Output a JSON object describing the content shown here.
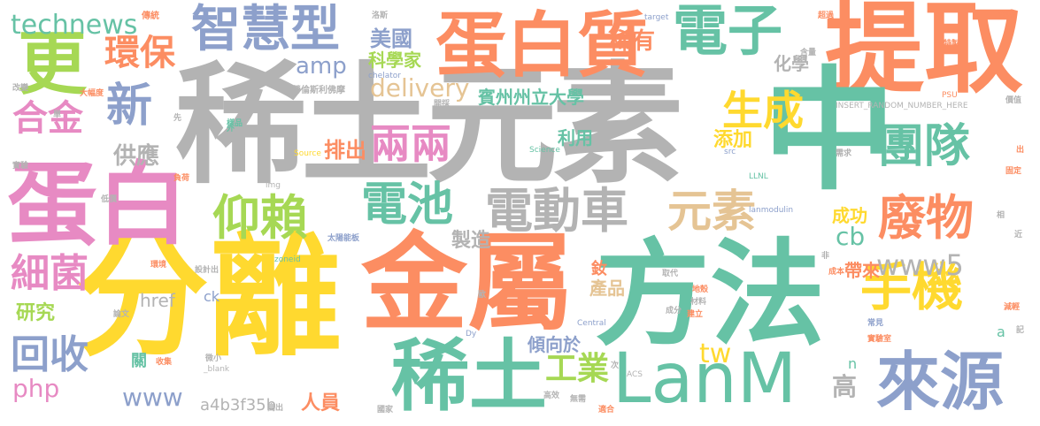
{
  "palette": {
    "green": "#66c2a5",
    "orange": "#fc8d62",
    "blue": "#8da0cb",
    "pink": "#e78ac3",
    "lime": "#a6d854",
    "yellow": "#ffd92f",
    "tan": "#e5c494",
    "gray": "#b3b3b3"
  },
  "words": {
    "xitu_yuansu": "稀土元素",
    "tiqu": "提取",
    "fenli": "分離",
    "jinshu": "金屬",
    "fangfa": "方法",
    "zhong": "中",
    "danbai": "蛋白",
    "danbaizhi": "蛋白質",
    "lanm": "LanM",
    "xitu": "稀土",
    "dianzi": "電子",
    "zhihuixing": "智慧型",
    "geng": "更",
    "laiyuan": "來源",
    "xin": "新",
    "tuandui": "團隊",
    "feiwu": "廢物",
    "yanglai": "仰賴",
    "dianchi": "電池",
    "diandongche": "電動車",
    "yuansu": "元素",
    "shouji": "手機",
    "huanbao": "環保",
    "hejin": "合金",
    "technews": "technews",
    "shengcheng": "生成",
    "liangliang": "兩兩",
    "delivery": "delivery",
    "xijun": "細菌",
    "huishou": "回收",
    "amp": "amp",
    "www5": "www5",
    "gongye": "工業",
    "binzhou": "賓州州立大學",
    "xiyou": "稀有",
    "meiguo": "美國",
    "kexuejia": "科學家",
    "huaxue": "化學",
    "gongying": "供應",
    "paichu": "排出",
    "tianjia": "添加",
    "liyong": "利用",
    "chenggong": "成功",
    "cb": "cb",
    "dailai": "帶來",
    "www": "www",
    "php": "php",
    "yanjiu": "研究",
    "zhizao": "製造",
    "chanpin": "產品",
    "tw": "tw",
    "qingxiangyu": "傾向於",
    "a4b": "a4b3f35b",
    "renyuan": "人員",
    "gao": "高",
    "href": "href",
    "ck": "ck",
    "n": "n",
    "guan": "關",
    "you": "釹",
    "a": "a",
    "chuantong": "傳統",
    "laorun": "勞倫斯利佛摩",
    "zhouzhi": "洛斯",
    "target": "target",
    "chaoguo": "超過",
    "bushou": "步驟",
    "gailiang": "改變",
    "dada": "大幅度",
    "chelator": "chelator",
    "insert": "INSERT_RANDOM_NUMBER_HERE",
    "psu": "PSU",
    "science": "Science",
    "source": "Source",
    "src": "src",
    "img": "img",
    "llnl": "LLNL",
    "lanmodulin": "lanmodulin",
    "taiyang": "太陽能板",
    "zoneid": "zoneid",
    "blank": "_blank",
    "central": "Central",
    "acs": "ACS",
    "dy": "Dy",
    "ziyuan": "資源",
    "jiage": "價值",
    "chengben": "成本",
    "xulie": "序列",
    "shuiping": "水平",
    "gonglv": "效率",
    "nengli": "能力",
    "bixu": "必須",
    "guojia": "國家",
    "jianli": "建立",
    "chengfen": "成分",
    "cailiao": "材料",
    "shiyan": "實驗",
    "shiyanshi": "實驗室",
    "zhikong": "質控",
    "changjian": "常見",
    "lunwen": "論文",
    "shouji2": "收集",
    "jianyi": "減輕",
    "rongyi": "容易",
    "fangshi": "方式",
    "chuangxin": "創新",
    "jiyin": "基因",
    "gaoxiao": "高效",
    "wujing": "無需",
    "shihe": "適合",
    "yikuai": "一塊",
    "dijia": "低價",
    "fuhe": "負荷",
    "tidai": "取代",
    "qiye": "企業",
    "dizhen": "地殼",
    "ziran": "自然",
    "huanjing": "環境",
    "yangben": "樣品",
    "kaicai": "開採",
    "shejichu": "設計出",
    "gaochu": "高出",
    "weixiao": "微小",
    "zhuangzhi": "裝置",
    "yiqi": "儀器",
    "biaozhun": "標準",
    "quefa": "缺乏",
    "lianjie": "連接",
    "zhidu": "製度",
    "weida": "偉大",
    "guding": "固定",
    "jinru": "進入",
    "xuqiu": "需求",
    "kongzhi": "控制",
    "fuxiao": "富效",
    "jingdu": "精度",
    "zhizhang": "紙張",
    "tezhi": "特製",
    "hanliang": "含量",
    "lie": "列",
    "jin": "近",
    "ji": "記",
    "chu": "出",
    "xiang": "相",
    "ke": "可",
    "fei": "非",
    "xian": "先",
    "wai": "外",
    "dan": "單",
    "ou": "歐",
    "zhi": "至",
    "ci": "次",
    "zhong2": "重",
    "yu": "於",
    "yi": "億",
    "guo": "過",
    "gu": "固",
    "ru": "入",
    "hui": "匯",
    "kuai": "快",
    "dian": "點"
  }
}
